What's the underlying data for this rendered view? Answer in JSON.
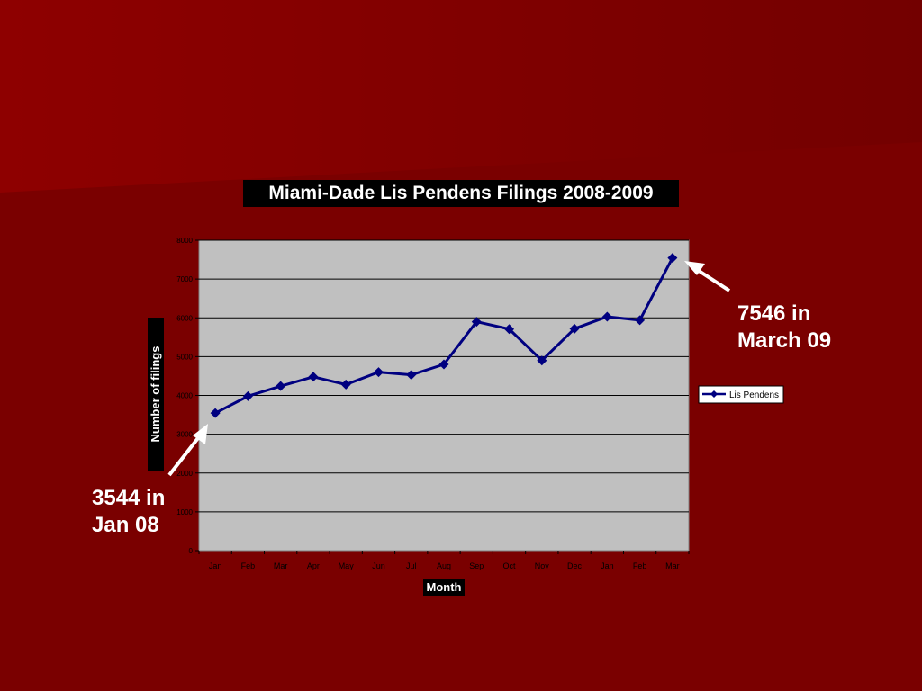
{
  "chart_data": {
    "type": "line",
    "title": "Miami-Dade Lis Pendens Filings 2008-2009",
    "xlabel": "Month",
    "ylabel": "Number of filings",
    "categories": [
      "Jan",
      "Feb",
      "Mar",
      "Apr",
      "May",
      "Jun",
      "Jul",
      "Aug",
      "Sep",
      "Oct",
      "Nov",
      "Dec",
      "Jan",
      "Feb",
      "Mar"
    ],
    "yticks": [
      "0",
      "1000",
      "2000",
      "3000",
      "4000",
      "5000",
      "6000",
      "7000",
      "8000"
    ],
    "ylim": [
      0,
      8000
    ],
    "grid": true,
    "legend_position": "right",
    "series": [
      {
        "name": "Lis Pendens",
        "color": "#000080",
        "marker": "diamond",
        "values": [
          3544,
          3980,
          4240,
          4480,
          4280,
          4600,
          4530,
          4800,
          5900,
          5710,
          4900,
          5720,
          6030,
          5940,
          7546
        ]
      }
    ]
  },
  "annotations": {
    "top": {
      "line1": "7546 in",
      "line2": "March 09"
    },
    "bottom": {
      "line1": "3544 in",
      "line2": "Jan 08"
    }
  },
  "colors": {
    "background": "#7a0000",
    "plot_area": "#c0c0c0",
    "series": "#000080"
  }
}
